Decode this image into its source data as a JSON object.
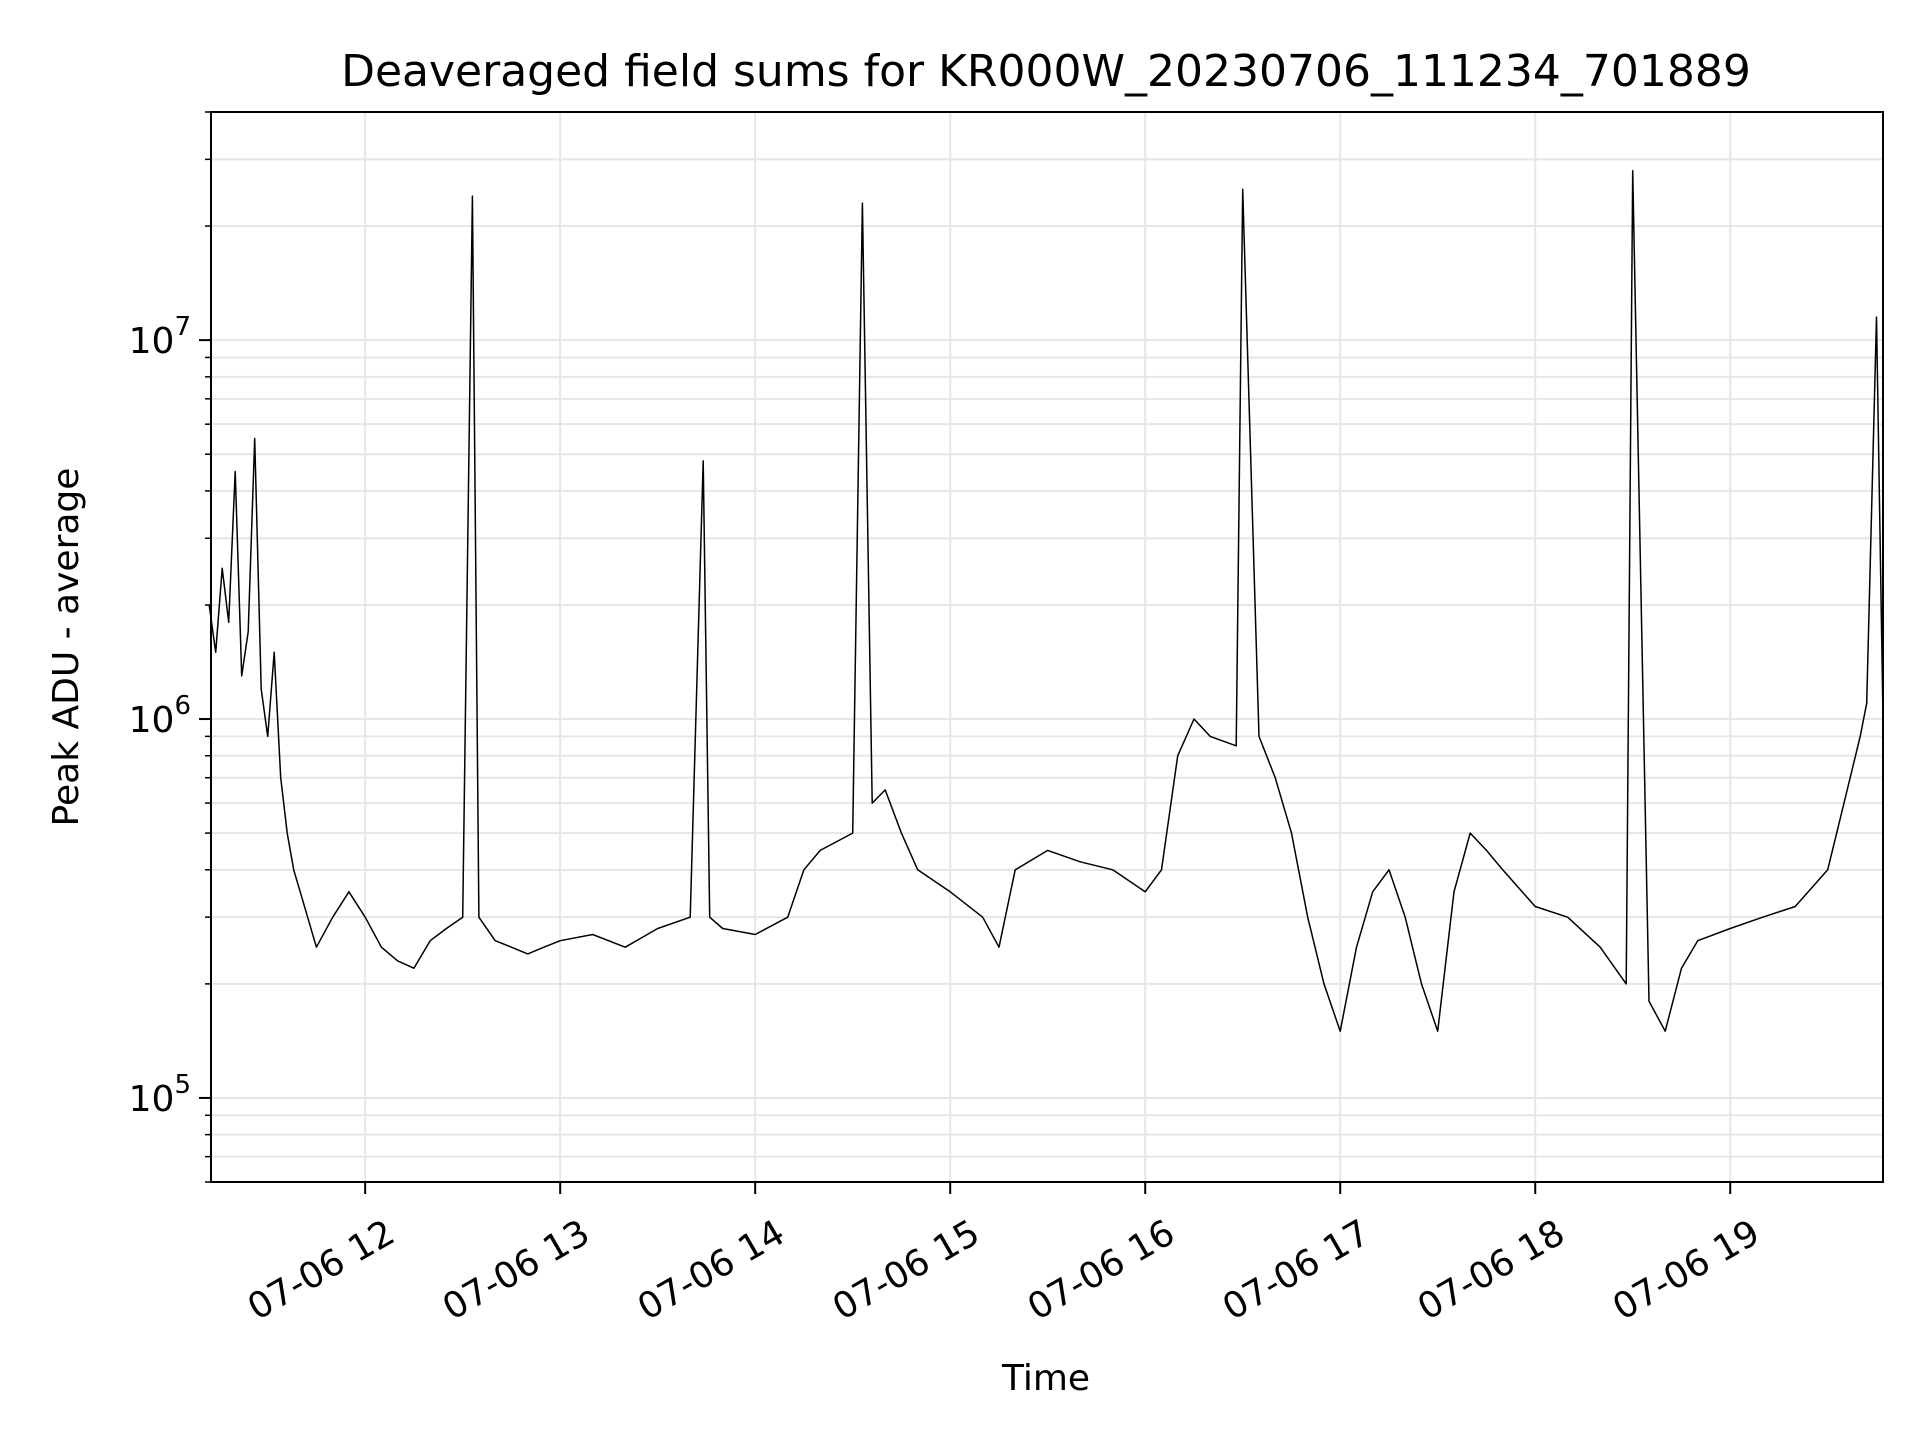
{
  "chart_data": {
    "type": "line",
    "title": "Deaveraged field sums for KR000W_20230706_111234_701889",
    "xlabel": "Time",
    "ylabel": "Peak ADU - average",
    "x_axis": {
      "kind": "datetime",
      "range": [
        "2023-07-06 11:12:34",
        "2023-07-06 19:47:00"
      ],
      "ticks": [
        {
          "value": "2023-07-06 12:00",
          "label": "07-06 12"
        },
        {
          "value": "2023-07-06 13:00",
          "label": "07-06 13"
        },
        {
          "value": "2023-07-06 14:00",
          "label": "07-06 14"
        },
        {
          "value": "2023-07-06 15:00",
          "label": "07-06 15"
        },
        {
          "value": "2023-07-06 16:00",
          "label": "07-06 16"
        },
        {
          "value": "2023-07-06 17:00",
          "label": "07-06 17"
        },
        {
          "value": "2023-07-06 18:00",
          "label": "07-06 18"
        },
        {
          "value": "2023-07-06 19:00",
          "label": "07-06 19"
        }
      ]
    },
    "y_axis": {
      "scale": "log",
      "range": [
        60000,
        40000000
      ],
      "ticks": [
        {
          "value": 100000,
          "base": "10",
          "exp": "5"
        },
        {
          "value": 1000000,
          "base": "10",
          "exp": "6"
        },
        {
          "value": 10000000,
          "base": "10",
          "exp": "7"
        }
      ]
    },
    "grid": true,
    "legend": "none",
    "line_color": "#000000",
    "series": [
      {
        "x": [
          "11:12",
          "11:14",
          "11:16",
          "11:18",
          "11:20",
          "11:22",
          "11:24",
          "11:26",
          "11:28",
          "11:30",
          "11:32",
          "11:34",
          "11:36",
          "11:38",
          "11:40",
          "11:45",
          "11:50",
          "11:55",
          "12:00",
          "12:05",
          "12:10",
          "12:15",
          "12:20",
          "12:25",
          "12:30",
          "12:33",
          "12:35",
          "12:40",
          "12:45",
          "12:50",
          "12:55",
          "13:00",
          "13:10",
          "13:20",
          "13:30",
          "13:40",
          "13:44",
          "13:46",
          "13:50",
          "14:00",
          "14:10",
          "14:15",
          "14:20",
          "14:30",
          "14:33",
          "14:36",
          "14:40",
          "14:45",
          "14:50",
          "15:00",
          "15:10",
          "15:15",
          "15:20",
          "15:30",
          "15:40",
          "15:50",
          "16:00",
          "16:05",
          "16:10",
          "16:15",
          "16:20",
          "16:28",
          "16:30",
          "16:35",
          "16:40",
          "16:45",
          "16:50",
          "16:55",
          "17:00",
          "17:05",
          "17:10",
          "17:15",
          "17:20",
          "17:25",
          "17:30",
          "17:35",
          "17:40",
          "17:45",
          "17:50",
          "18:00",
          "18:10",
          "18:20",
          "18:28",
          "18:30",
          "18:35",
          "18:40",
          "18:45",
          "18:50",
          "19:00",
          "19:10",
          "19:20",
          "19:30",
          "19:35",
          "19:40",
          "19:42",
          "19:45",
          "19:47"
        ],
        "y": [
          2000000,
          1500000,
          2500000,
          1800000,
          4500000,
          1300000,
          1700000,
          5500000,
          1200000,
          900000,
          1500000,
          700000,
          500000,
          400000,
          350000,
          250000,
          300000,
          350000,
          300000,
          250000,
          230000,
          220000,
          260000,
          280000,
          300000,
          24000000,
          300000,
          260000,
          250000,
          240000,
          250000,
          260000,
          270000,
          250000,
          280000,
          300000,
          4800000,
          300000,
          280000,
          270000,
          300000,
          400000,
          450000,
          500000,
          23000000,
          600000,
          650000,
          500000,
          400000,
          350000,
          300000,
          250000,
          400000,
          450000,
          420000,
          400000,
          350000,
          400000,
          800000,
          1000000,
          900000,
          850000,
          25000000,
          900000,
          700000,
          500000,
          300000,
          200000,
          150000,
          250000,
          350000,
          400000,
          300000,
          200000,
          150000,
          350000,
          500000,
          450000,
          400000,
          320000,
          300000,
          250000,
          200000,
          28000000,
          180000,
          150000,
          220000,
          260000,
          280000,
          300000,
          320000,
          400000,
          600000,
          900000,
          1100000,
          11500000,
          1000000
        ]
      }
    ]
  }
}
